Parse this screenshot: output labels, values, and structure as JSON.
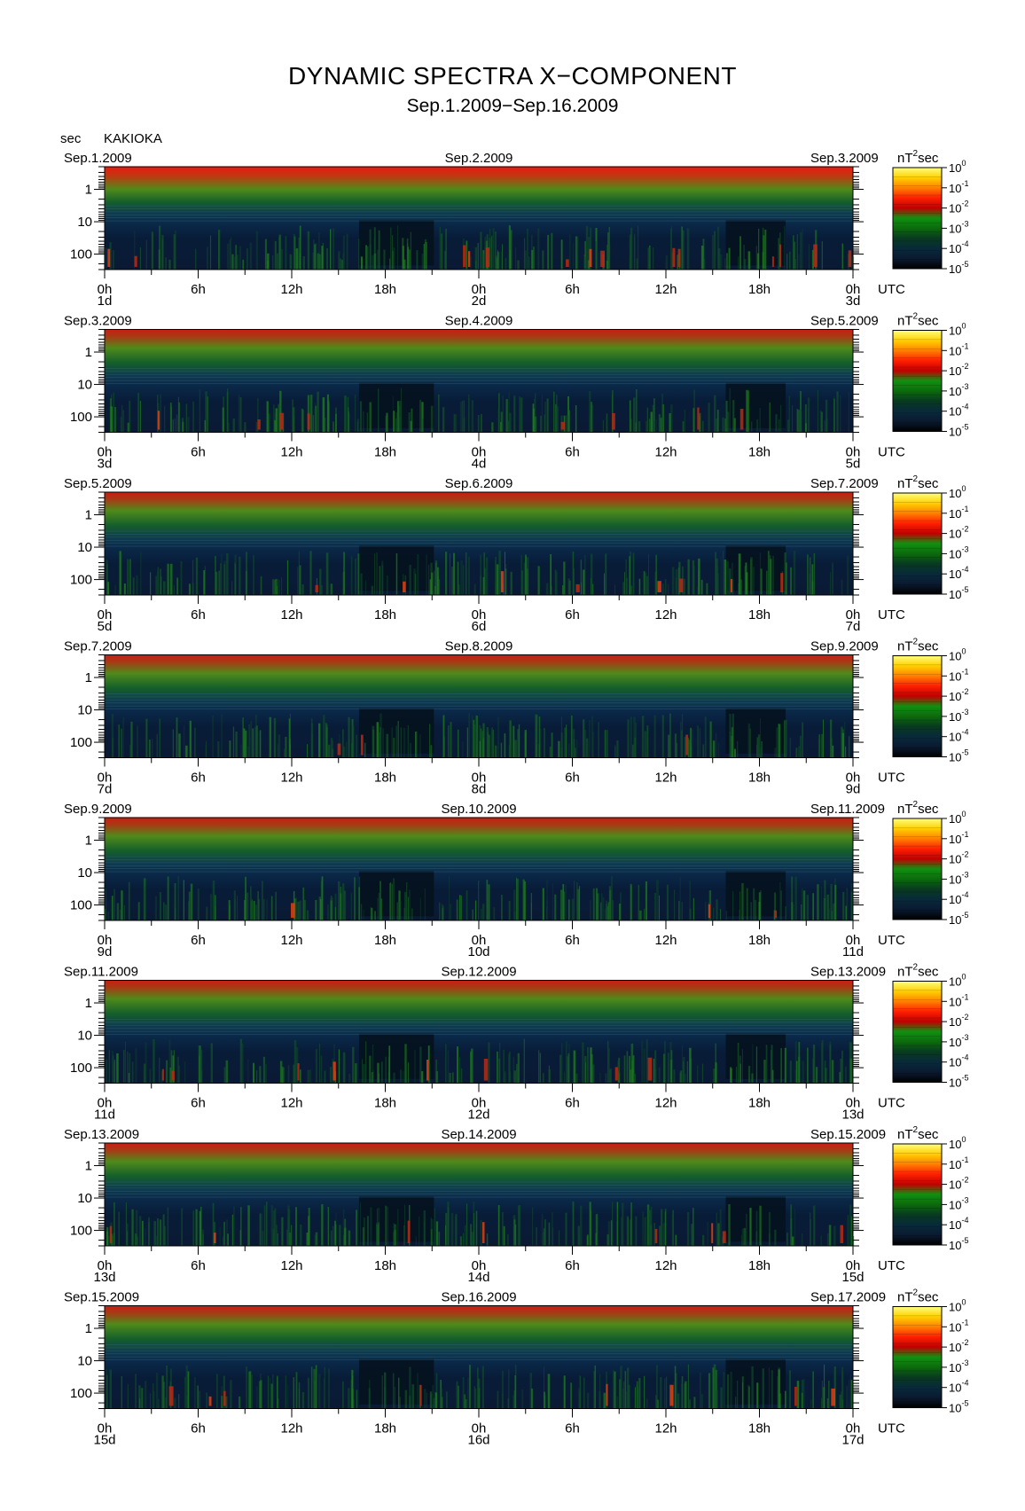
{
  "header": {
    "title": "DYNAMIC SPECTRA X−COMPONENT",
    "subtitle": "Sep.1.2009−Sep.16.2009",
    "station": "KAKIOKA",
    "y_unit": "sec"
  },
  "chart_data": {
    "type": "heatmap",
    "title": "DYNAMIC SPECTRA X−COMPONENT",
    "subtitle": "Sep.1.2009−Sep.16.2009",
    "station": "KAKIOKA",
    "ylabel": "sec",
    "y_scale": "log",
    "ylim": [
      0.2,
      300
    ],
    "y_ticks": [
      "1",
      "10",
      "100"
    ],
    "x_ticks": [
      "0h",
      "6h",
      "12h",
      "18h",
      "0h",
      "6h",
      "12h",
      "18h",
      "0h"
    ],
    "x_unit": "UTC",
    "colorbar": {
      "unit_left": "nT",
      "unit_sup": "2",
      "unit_right": "sec",
      "scale": "log",
      "range": [
        1e-05,
        1
      ],
      "tick_labels": [
        {
          "base": "10",
          "exp": "0"
        },
        {
          "base": "10",
          "exp": "-1"
        },
        {
          "base": "10",
          "exp": "-2"
        },
        {
          "base": "10",
          "exp": "-3"
        },
        {
          "base": "10",
          "exp": "-4"
        },
        {
          "base": "10",
          "exp": "-5"
        }
      ],
      "colors": [
        "#ffff80",
        "#ffd000",
        "#ff8000",
        "#ff2000",
        "#c00000",
        "#109010",
        "#0c6a0c",
        "#083a20",
        "#082a3a",
        "#0a1a30",
        "#000000"
      ]
    },
    "panels": [
      {
        "date_left": "Sep.1.2009",
        "date_mid": "Sep.2.2009",
        "date_right": "Sep.3.2009",
        "day_left": "1d",
        "day_mid": "2d",
        "day_right": "3d",
        "activity": "high"
      },
      {
        "date_left": "Sep.3.2009",
        "date_mid": "Sep.4.2009",
        "date_right": "Sep.5.2009",
        "day_left": "3d",
        "day_mid": "4d",
        "day_right": "5d",
        "activity": "moderate"
      },
      {
        "date_left": "Sep.5.2009",
        "date_mid": "Sep.6.2009",
        "date_right": "Sep.7.2009",
        "day_left": "5d",
        "day_mid": "6d",
        "day_right": "7d",
        "activity": "moderate"
      },
      {
        "date_left": "Sep.7.2009",
        "date_mid": "Sep.8.2009",
        "date_right": "Sep.9.2009",
        "day_left": "7d",
        "day_mid": "8d",
        "day_right": "9d",
        "activity": "low"
      },
      {
        "date_left": "Sep.9.2009",
        "date_mid": "Sep.10.2009",
        "date_right": "Sep.11.2009",
        "day_left": "9d",
        "day_mid": "10d",
        "day_right": "11d",
        "activity": "low"
      },
      {
        "date_left": "Sep.11.2009",
        "date_mid": "Sep.12.2009",
        "date_right": "Sep.13.2009",
        "day_left": "11d",
        "day_mid": "12d",
        "day_right": "13d",
        "activity": "moderate"
      },
      {
        "date_left": "Sep.13.2009",
        "date_mid": "Sep.14.2009",
        "date_right": "Sep.15.2009",
        "day_left": "13d",
        "day_mid": "14d",
        "day_right": "15d",
        "activity": "moderate"
      },
      {
        "date_left": "Sep.15.2009",
        "date_mid": "Sep.16.2009",
        "date_right": "Sep.17.2009",
        "day_left": "15d",
        "day_mid": "16d",
        "day_right": "17d",
        "activity": "moderate"
      }
    ]
  }
}
